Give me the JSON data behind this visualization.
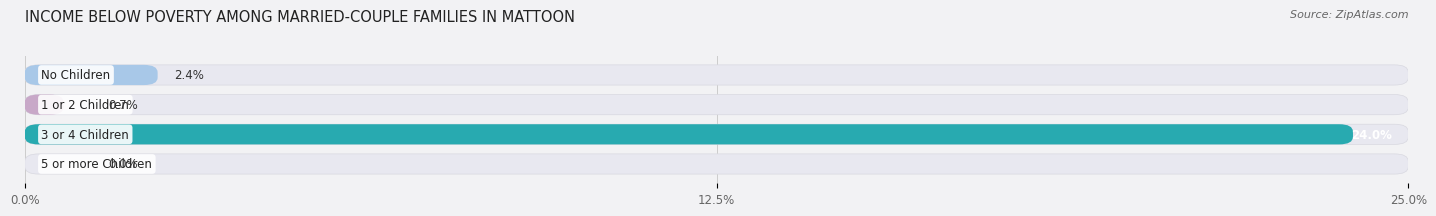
{
  "title": "INCOME BELOW POVERTY AMONG MARRIED-COUPLE FAMILIES IN MATTOON",
  "source": "Source: ZipAtlas.com",
  "categories": [
    "No Children",
    "1 or 2 Children",
    "3 or 4 Children",
    "5 or more Children"
  ],
  "values": [
    2.4,
    0.7,
    24.0,
    0.0
  ],
  "bar_colors": [
    "#a8c8e8",
    "#c8a8c8",
    "#28aab0",
    "#a8aee8"
  ],
  "bar_bg_color": "#e8e8f0",
  "bar_bg_edgecolor": "#d8d8e0",
  "xlim": [
    0,
    25.0
  ],
  "xticks": [
    0.0,
    12.5,
    25.0
  ],
  "xticklabels": [
    "0.0%",
    "12.5%",
    "25.0%"
  ],
  "title_fontsize": 10.5,
  "label_fontsize": 8.5,
  "value_fontsize": 8.5,
  "source_fontsize": 8,
  "background_color": "#f2f2f4",
  "bar_height": 0.68,
  "bar_sep": 1.0,
  "rounding_size": 0.25
}
